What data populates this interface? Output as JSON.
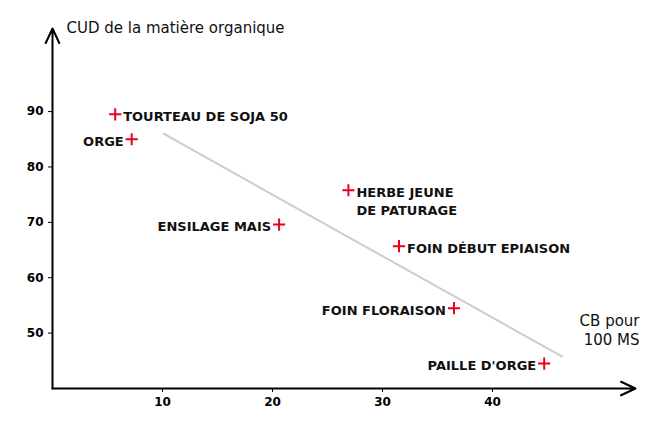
{
  "chart_data": {
    "type": "scatter",
    "ylabel": "CUD de la matière organique",
    "xlabel": "CB pour\n100 MS",
    "labels": [
      "TOURTEAU DE SOJA 50",
      "ORGE",
      "HERBE JEUNE\nDE PATURAGE",
      "ENSILAGE MAIS",
      "FOIN DÉBUT EPIAISON",
      "FOIN FLORAISON",
      "PAILLE D'ORGE"
    ],
    "x": [
      5.7,
      7.2,
      26.9,
      20.6,
      31.5,
      36.5,
      44.7
    ],
    "y": [
      89.5,
      85,
      75.8,
      69.6,
      65.7,
      54.5,
      44.5
    ],
    "color": "#e8001c",
    "marker": "plus",
    "xlim": [
      0,
      53
    ],
    "ylim": [
      40,
      105
    ],
    "xticks": [
      10,
      20,
      30,
      40
    ],
    "yticks": [
      50,
      60,
      70,
      80,
      90
    ],
    "trend": {
      "x": [
        10.1,
        46.3
      ],
      "y": [
        86,
        45.8
      ],
      "color": "#cccccc"
    }
  }
}
